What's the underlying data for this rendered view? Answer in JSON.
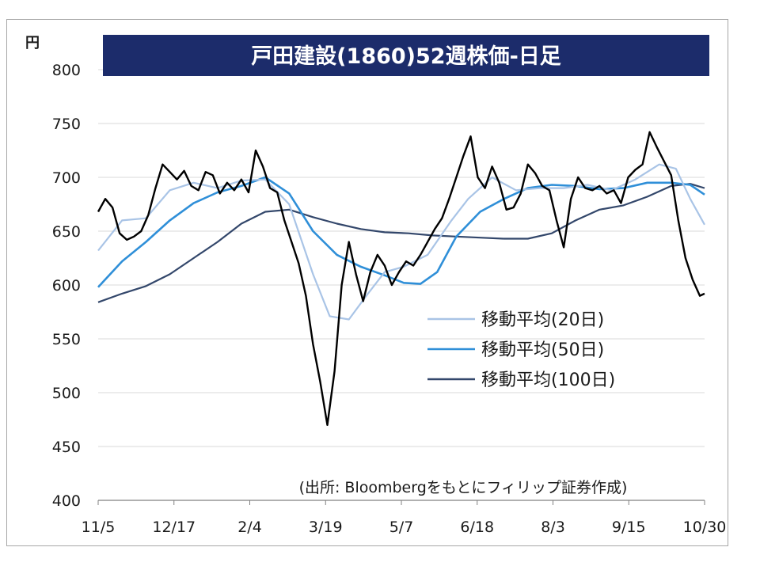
{
  "chart_data": {
    "type": "line",
    "title": "戸田建設(1860)52週株価-日足",
    "unit_label": "円",
    "source": "(出所: Bloombergをもとにフィリップ証券作成)",
    "ylim": [
      400,
      800
    ],
    "y_ticks": [
      "800",
      "750",
      "700",
      "650",
      "600",
      "550",
      "500",
      "450",
      "400"
    ],
    "x_ticks": [
      "11/5",
      "12/17",
      "2/4",
      "3/19",
      "5/7",
      "6/18",
      "8/3",
      "9/15",
      "10/30"
    ],
    "grid": true,
    "legend_position": "right-middle",
    "colors": {
      "price": "#000000",
      "ma20": "#a9c4e6",
      "ma50": "#2f8fd8",
      "ma100": "#33476b",
      "title_bg": "#1c2c6b"
    },
    "series": [
      {
        "name": "",
        "role": "price",
        "points": [
          [
            0,
            668
          ],
          [
            3,
            680
          ],
          [
            6,
            672
          ],
          [
            9,
            648
          ],
          [
            12,
            642
          ],
          [
            15,
            645
          ],
          [
            18,
            650
          ],
          [
            21,
            665
          ],
          [
            24,
            690
          ],
          [
            27,
            712
          ],
          [
            30,
            705
          ],
          [
            33,
            698
          ],
          [
            36,
            706
          ],
          [
            39,
            692
          ],
          [
            42,
            688
          ],
          [
            45,
            705
          ],
          [
            48,
            702
          ],
          [
            51,
            685
          ],
          [
            54,
            695
          ],
          [
            57,
            688
          ],
          [
            60,
            698
          ],
          [
            63,
            686
          ],
          [
            66,
            725
          ],
          [
            69,
            710
          ],
          [
            72,
            690
          ],
          [
            75,
            686
          ],
          [
            78,
            660
          ],
          [
            81,
            640
          ],
          [
            84,
            620
          ],
          [
            87,
            590
          ],
          [
            90,
            545
          ],
          [
            93,
            510
          ],
          [
            96,
            470
          ],
          [
            99,
            520
          ],
          [
            102,
            600
          ],
          [
            105,
            640
          ],
          [
            108,
            610
          ],
          [
            111,
            585
          ],
          [
            114,
            612
          ],
          [
            117,
            628
          ],
          [
            120,
            618
          ],
          [
            123,
            600
          ],
          [
            126,
            612
          ],
          [
            129,
            622
          ],
          [
            132,
            618
          ],
          [
            135,
            628
          ],
          [
            138,
            640
          ],
          [
            141,
            652
          ],
          [
            144,
            662
          ],
          [
            147,
            680
          ],
          [
            150,
            700
          ],
          [
            153,
            720
          ],
          [
            156,
            738
          ],
          [
            159,
            700
          ],
          [
            162,
            690
          ],
          [
            165,
            710
          ],
          [
            168,
            695
          ],
          [
            171,
            670
          ],
          [
            174,
            672
          ],
          [
            177,
            685
          ],
          [
            180,
            712
          ],
          [
            183,
            704
          ],
          [
            186,
            692
          ],
          [
            189,
            688
          ],
          [
            192,
            660
          ],
          [
            195,
            635
          ],
          [
            198,
            680
          ],
          [
            201,
            700
          ],
          [
            204,
            690
          ],
          [
            207,
            688
          ],
          [
            210,
            692
          ],
          [
            213,
            685
          ],
          [
            216,
            688
          ],
          [
            219,
            676
          ],
          [
            222,
            700
          ],
          [
            225,
            707
          ],
          [
            228,
            712
          ],
          [
            231,
            742
          ],
          [
            234,
            728
          ],
          [
            237,
            715
          ],
          [
            240,
            702
          ],
          [
            243,
            660
          ],
          [
            246,
            625
          ],
          [
            249,
            605
          ],
          [
            252,
            590
          ],
          [
            254,
            592
          ]
        ]
      },
      {
        "name": "移動平均(20日)",
        "role": "ma20",
        "points": [
          [
            0,
            632
          ],
          [
            10,
            660
          ],
          [
            20,
            662
          ],
          [
            30,
            688
          ],
          [
            40,
            695
          ],
          [
            50,
            690
          ],
          [
            60,
            697
          ],
          [
            70,
            698
          ],
          [
            80,
            675
          ],
          [
            90,
            610
          ],
          [
            97,
            571
          ],
          [
            105,
            568
          ],
          [
            113,
            592
          ],
          [
            120,
            612
          ],
          [
            128,
            617
          ],
          [
            138,
            628
          ],
          [
            148,
            660
          ],
          [
            155,
            680
          ],
          [
            165,
            700
          ],
          [
            175,
            688
          ],
          [
            185,
            690
          ],
          [
            195,
            690
          ],
          [
            205,
            693
          ],
          [
            215,
            688
          ],
          [
            225,
            698
          ],
          [
            235,
            712
          ],
          [
            242,
            708
          ],
          [
            248,
            680
          ],
          [
            254,
            656
          ]
        ]
      },
      {
        "name": "移動平均(50日)",
        "role": "ma50",
        "points": [
          [
            0,
            598
          ],
          [
            10,
            622
          ],
          [
            20,
            640
          ],
          [
            30,
            660
          ],
          [
            40,
            676
          ],
          [
            50,
            686
          ],
          [
            60,
            692
          ],
          [
            70,
            700
          ],
          [
            80,
            685
          ],
          [
            90,
            650
          ],
          [
            100,
            628
          ],
          [
            110,
            617
          ],
          [
            120,
            609
          ],
          [
            128,
            602
          ],
          [
            135,
            601
          ],
          [
            142,
            612
          ],
          [
            150,
            645
          ],
          [
            160,
            668
          ],
          [
            170,
            680
          ],
          [
            180,
            690
          ],
          [
            190,
            693
          ],
          [
            200,
            692
          ],
          [
            210,
            689
          ],
          [
            220,
            690
          ],
          [
            230,
            695
          ],
          [
            240,
            695
          ],
          [
            248,
            693
          ],
          [
            254,
            684
          ]
        ]
      },
      {
        "name": "移動平均(100日)",
        "role": "ma100",
        "points": [
          [
            0,
            584
          ],
          [
            10,
            592
          ],
          [
            20,
            599
          ],
          [
            30,
            610
          ],
          [
            40,
            625
          ],
          [
            50,
            640
          ],
          [
            60,
            657
          ],
          [
            70,
            668
          ],
          [
            80,
            670
          ],
          [
            90,
            663
          ],
          [
            100,
            657
          ],
          [
            110,
            652
          ],
          [
            120,
            649
          ],
          [
            130,
            648
          ],
          [
            140,
            646
          ],
          [
            150,
            645
          ],
          [
            160,
            644
          ],
          [
            170,
            643
          ],
          [
            180,
            643
          ],
          [
            190,
            648
          ],
          [
            200,
            660
          ],
          [
            210,
            670
          ],
          [
            220,
            674
          ],
          [
            230,
            682
          ],
          [
            240,
            692
          ],
          [
            248,
            694
          ],
          [
            254,
            690
          ]
        ]
      }
    ],
    "x_range": [
      0,
      254
    ]
  }
}
